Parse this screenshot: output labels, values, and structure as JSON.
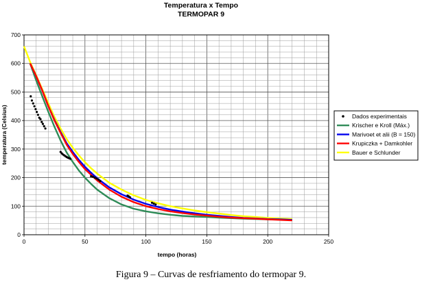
{
  "chart_data": {
    "type": "line",
    "title": "Temperatura x Tempo",
    "subtitle": "TERMOPAR 9",
    "xlabel": "tempo (horas)",
    "ylabel": "temperatura (Celsius)",
    "xlim": [
      0,
      250
    ],
    "ylim": [
      0,
      700
    ],
    "xticks": [
      0,
      50,
      100,
      150,
      200,
      250
    ],
    "yticks": [
      0,
      100,
      200,
      300,
      400,
      500,
      600,
      700
    ],
    "x_minor_step": 10,
    "y_minor_step": 20,
    "grid": true,
    "legend_position": "right",
    "series": [
      {
        "name": "Dados experimentais",
        "kind": "points",
        "color": "#000000",
        "x": [
          5.5,
          6.5,
          7.5,
          8.5,
          9.5,
          10.5,
          11.5,
          12.5,
          13.5,
          14.5,
          15.5,
          16.5,
          17.5,
          30.0,
          31.0,
          32.0,
          33.0,
          34.0,
          35.0,
          36.0,
          37.0,
          38.0,
          55.0,
          56.5,
          58.0,
          59.5,
          61.0,
          62.5,
          85.0,
          86.0,
          87.0,
          105.0,
          106.5,
          108.0
        ],
        "y": [
          485,
          470,
          460,
          450,
          440,
          430,
          420,
          410,
          405,
          395,
          388,
          380,
          372,
          290,
          285,
          281,
          278,
          275,
          272,
          270,
          268,
          266,
          205,
          203,
          200,
          197,
          193,
          188,
          137,
          134,
          131,
          112,
          109,
          106
        ]
      },
      {
        "name": "Krischer e Kroll (Máx.)",
        "kind": "line",
        "color": "#2e8b57",
        "x": [
          5,
          10,
          15,
          20,
          25,
          30,
          35,
          40,
          45,
          50,
          55,
          60,
          70,
          80,
          90,
          100,
          110,
          120,
          130,
          140,
          150,
          160,
          170,
          180,
          190,
          200,
          210,
          220
        ],
        "y": [
          600,
          540,
          485,
          430,
          378,
          330,
          288,
          255,
          225,
          200,
          178,
          158,
          128,
          106,
          91,
          82,
          75,
          70,
          66,
          64,
          62,
          60,
          58,
          56,
          55,
          54,
          53,
          52
        ]
      },
      {
        "name": "Marivoet et alii (B = 150)",
        "kind": "line",
        "color": "#0000ee",
        "x": [
          5,
          10,
          15,
          20,
          25,
          30,
          35,
          40,
          45,
          50,
          55,
          60,
          70,
          80,
          90,
          100,
          110,
          120,
          130,
          140,
          150,
          160,
          170,
          180,
          190,
          200,
          210,
          220
        ],
        "y": [
          600,
          555,
          505,
          450,
          402,
          360,
          320,
          290,
          262,
          238,
          217,
          198,
          166,
          142,
          123,
          108,
          97,
          88,
          81,
          75,
          70,
          66,
          62,
          59,
          57,
          55,
          54,
          52
        ]
      },
      {
        "name": "Krupiczka + Damkohler",
        "kind": "line",
        "color": "#ff0000",
        "x": [
          5,
          10,
          15,
          20,
          25,
          30,
          35,
          40,
          45,
          50,
          55,
          60,
          70,
          80,
          90,
          100,
          110,
          120,
          130,
          140,
          150,
          160,
          170,
          180,
          190,
          200,
          210,
          220
        ],
        "y": [
          600,
          555,
          505,
          450,
          400,
          357,
          315,
          283,
          255,
          230,
          210,
          190,
          158,
          133,
          114,
          100,
          90,
          82,
          76,
          71,
          67,
          63,
          60,
          58,
          56,
          54,
          52,
          50
        ]
      },
      {
        "name": "Bauer e Schlunder",
        "kind": "line",
        "color": "#ffff00",
        "x": [
          0,
          5,
          10,
          15,
          20,
          25,
          30,
          35,
          40,
          45,
          50,
          55,
          60,
          70,
          80,
          90,
          100,
          110,
          120,
          130,
          140,
          150,
          160,
          170,
          180,
          190,
          200,
          210,
          220
        ],
        "y": [
          660,
          605,
          558,
          510,
          460,
          412,
          372,
          335,
          305,
          278,
          254,
          233,
          214,
          182,
          158,
          138,
          122,
          110,
          100,
          92,
          85,
          79,
          74,
          69,
          65,
          62,
          59,
          57,
          55
        ]
      }
    ]
  },
  "caption": "Figura 9 – Curvas de resfriamento do termopar 9."
}
